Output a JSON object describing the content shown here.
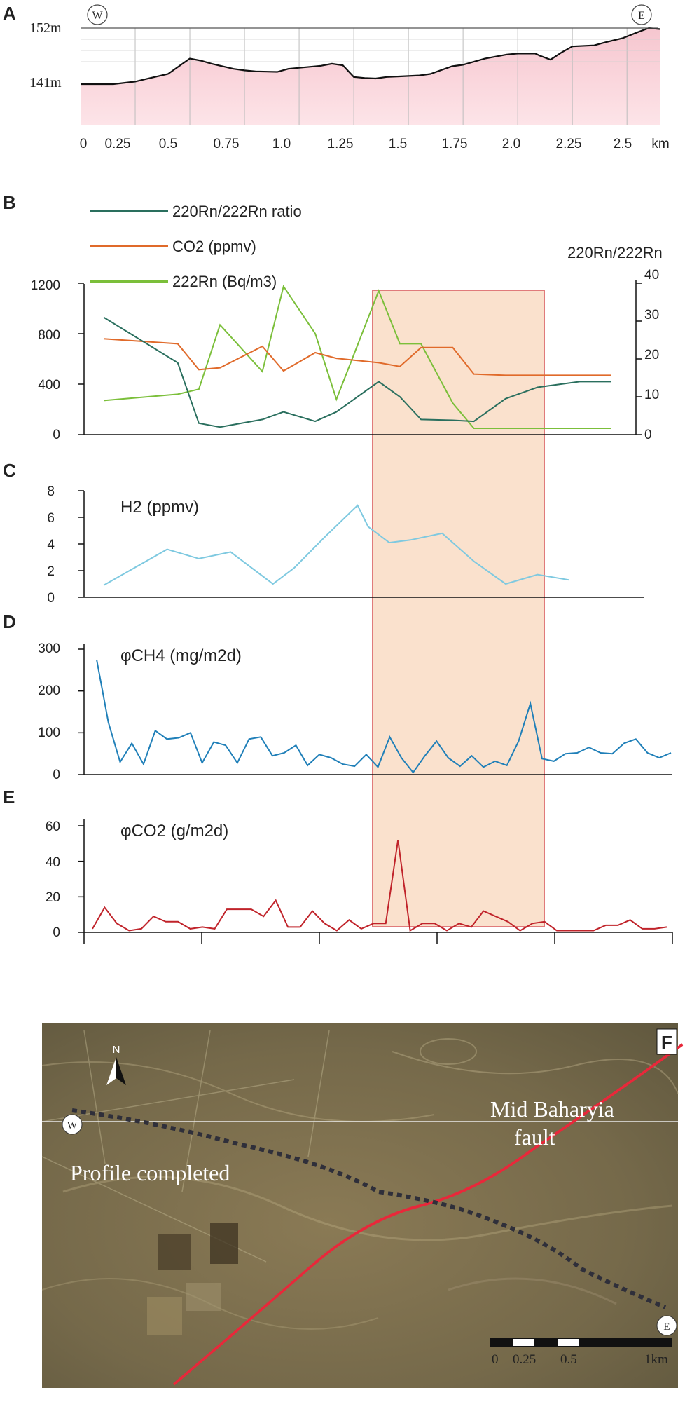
{
  "chart_data": [
    {
      "panel": "A",
      "type": "area",
      "title": "",
      "xlabel": "km",
      "x_ticks": [
        "0",
        "0.25",
        "0.5",
        "0.75",
        "1.0",
        "1.25",
        "1.5",
        "1.75",
        "2.0",
        "2.25",
        "2.5",
        "km"
      ],
      "y_ticks": [
        "152m",
        "141m"
      ],
      "markers": {
        "west": "W",
        "east": "E"
      },
      "xlim": [
        0,
        2.65
      ],
      "ylim": [
        141,
        152
      ],
      "x": [
        0,
        0.15,
        0.25,
        0.3,
        0.35,
        0.4,
        0.45,
        0.5,
        0.55,
        0.6,
        0.7,
        0.75,
        0.8,
        0.9,
        0.95,
        1.0,
        1.1,
        1.15,
        1.2,
        1.25,
        1.3,
        1.35,
        1.4,
        1.45,
        1.5,
        1.55,
        1.6,
        1.7,
        1.75,
        1.85,
        1.95,
        2.0,
        2.08,
        2.1,
        2.15,
        2.2,
        2.25,
        2.35,
        2.4,
        2.48,
        2.55,
        2.6,
        2.65
      ],
      "y": [
        141,
        141,
        141.5,
        142,
        142.5,
        143,
        144.5,
        146,
        145.6,
        145,
        144,
        143.7,
        143.5,
        143.4,
        144,
        144.2,
        144.6,
        145,
        144.7,
        142.4,
        142.2,
        142.1,
        142.4,
        142.5,
        142.6,
        142.7,
        143,
        144.5,
        144.8,
        146,
        146.8,
        147,
        147,
        146.6,
        145.8,
        147.2,
        148.4,
        148.6,
        149.2,
        150,
        151.2,
        152,
        151.8
      ]
    },
    {
      "panel": "B",
      "type": "line",
      "legend": [
        "220Rn/222Rn ratio",
        "CO2 (ppmv)",
        "222Rn (Bq/m3)"
      ],
      "right_axis_label": "220Rn/222Rn",
      "y_left_ticks": [
        "0",
        "400",
        "800",
        "1200"
      ],
      "y_right_ticks": [
        "0",
        "10",
        "20",
        "30",
        "40"
      ],
      "ylim_left": [
        0,
        1200
      ],
      "ylim_right": [
        0,
        40
      ],
      "x": [
        0.1,
        0.45,
        0.55,
        0.65,
        0.85,
        0.95,
        1.1,
        1.2,
        1.4,
        1.5,
        1.6,
        1.75,
        1.85,
        2.0,
        2.15,
        2.35,
        2.5
      ],
      "series": [
        {
          "name": "220Rn/222Rn ratio",
          "axis": "right",
          "color": "#2a6f5e",
          "values": [
            31,
            19,
            3,
            2,
            4,
            6,
            3.5,
            6,
            14,
            10,
            4,
            3.8,
            3.5,
            9.5,
            12.5,
            14,
            14
          ]
        },
        {
          "name": "CO2 (ppmv)",
          "axis": "left",
          "color": "#e06a2a",
          "values": [
            760,
            720,
            515,
            530,
            700,
            505,
            650,
            605,
            570,
            540,
            690,
            690,
            480,
            470,
            470,
            470,
            470
          ]
        },
        {
          "name": "222Rn (Bq/m3)",
          "axis": "left",
          "color": "#7bbf3a",
          "values": [
            270,
            320,
            360,
            870,
            500,
            1175,
            800,
            280,
            1140,
            720,
            720,
            250,
            50,
            50,
            50,
            50,
            50
          ]
        }
      ]
    },
    {
      "panel": "C",
      "type": "line",
      "title": "H2 (ppmv)",
      "y_ticks": [
        "0",
        "2",
        "4",
        "6",
        "8"
      ],
      "ylim": [
        0,
        8
      ],
      "series": [
        {
          "name": "H2 (ppmv)",
          "color": "#7ec9e0",
          "x": [
            0.1,
            0.4,
            0.55,
            0.7,
            0.9,
            1.0,
            1.15,
            1.3,
            1.35,
            1.45,
            1.55,
            1.7,
            1.85,
            2.0,
            2.15,
            2.3
          ],
          "values": [
            0.9,
            3.6,
            2.9,
            3.4,
            1.0,
            2.2,
            4.6,
            6.9,
            5.3,
            4.1,
            4.3,
            4.8,
            2.7,
            1.0,
            1.7,
            1.3
          ]
        }
      ]
    },
    {
      "panel": "D",
      "type": "line",
      "title": "φCH4 (mg/m2d)",
      "y_ticks": [
        "0",
        "100",
        "200",
        "300"
      ],
      "ylim": [
        0,
        300
      ],
      "series": [
        {
          "name": "φCH4 (mg/m2d)",
          "color": "#1f7fb8",
          "values": [
            275,
            125,
            30,
            75,
            25,
            105,
            85,
            88,
            100,
            28,
            78,
            70,
            28,
            85,
            90,
            45,
            52,
            70,
            22,
            48,
            40,
            25,
            20,
            48,
            18,
            90,
            40,
            5,
            45,
            80,
            40,
            20,
            45,
            18,
            32,
            22,
            80,
            170,
            38,
            32,
            50,
            52,
            65,
            52,
            50,
            75,
            85,
            52,
            40,
            52
          ]
        }
      ]
    },
    {
      "panel": "E",
      "type": "line",
      "title": "φCO2 (g/m2d)",
      "y_ticks": [
        "0",
        "20",
        "40",
        "60"
      ],
      "ylim": [
        0,
        60
      ],
      "series": [
        {
          "name": "φCO2 (g/m2d)",
          "color": "#c0232a",
          "values": [
            2,
            14,
            5,
            1,
            2,
            9,
            6,
            6,
            2,
            3,
            2,
            13,
            13,
            13,
            9,
            18,
            3,
            3,
            12,
            5,
            1,
            7,
            2,
            5,
            5,
            52,
            1,
            5,
            5,
            1,
            5,
            3,
            12,
            9,
            6,
            1,
            5,
            6,
            1,
            1,
            1,
            1,
            4,
            4,
            7,
            2,
            2,
            3
          ]
        }
      ]
    }
  ],
  "panel_labels": {
    "a": "A",
    "b": "B",
    "c": "C",
    "d": "D",
    "e": "E",
    "f": "F"
  },
  "map": {
    "fault_label_1": "Mid Baharyia",
    "fault_label_2": "fault",
    "profile_label": "Profile completed",
    "west": "W",
    "east": "E",
    "north": "N",
    "scale_ticks": [
      "0",
      "0.25",
      "0.5",
      "1km"
    ]
  }
}
